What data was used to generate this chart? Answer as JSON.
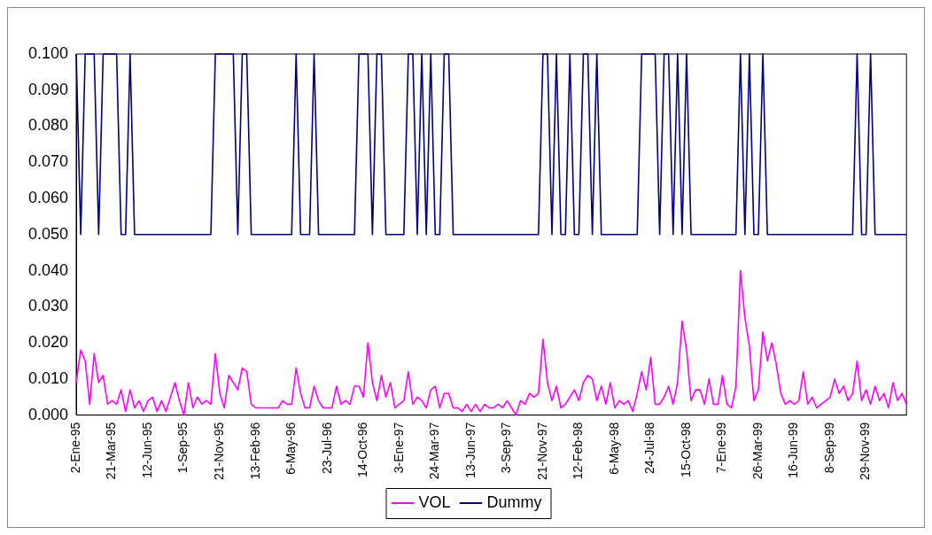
{
  "chart_data": {
    "type": "line",
    "categories": [
      "2-Ene-95",
      null,
      null,
      null,
      null,
      null,
      null,
      null,
      "21-Mar-95",
      null,
      null,
      null,
      null,
      null,
      null,
      null,
      "12-Jun-95",
      null,
      null,
      null,
      null,
      null,
      null,
      null,
      "1-Sep-95",
      null,
      null,
      null,
      null,
      null,
      null,
      null,
      "21-Nov-95",
      null,
      null,
      null,
      null,
      null,
      null,
      null,
      "13-Feb-96",
      null,
      null,
      null,
      null,
      null,
      null,
      null,
      "6-May-96",
      null,
      null,
      null,
      null,
      null,
      null,
      null,
      "23-Jul-96",
      null,
      null,
      null,
      null,
      null,
      null,
      null,
      "14-Oct-96",
      null,
      null,
      null,
      null,
      null,
      null,
      null,
      "3-Ene-97",
      null,
      null,
      null,
      null,
      null,
      null,
      null,
      "24-Mar-97",
      null,
      null,
      null,
      null,
      null,
      null,
      null,
      "13-Jun-97",
      null,
      null,
      null,
      null,
      null,
      null,
      null,
      "3-Sep-97",
      null,
      null,
      null,
      null,
      null,
      null,
      null,
      "21-Nov-97",
      null,
      null,
      null,
      null,
      null,
      null,
      null,
      "12-Feb-98",
      null,
      null,
      null,
      null,
      null,
      null,
      null,
      "6-May-98",
      null,
      null,
      null,
      null,
      null,
      null,
      null,
      "24-Jul-98",
      null,
      null,
      null,
      null,
      null,
      null,
      null,
      "15-Oct-98",
      null,
      null,
      null,
      null,
      null,
      null,
      null,
      "7-Ene-99",
      null,
      null,
      null,
      null,
      null,
      null,
      null,
      "26-Mar-99",
      null,
      null,
      null,
      null,
      null,
      null,
      null,
      "16-Jun-99",
      null,
      null,
      null,
      null,
      null,
      null,
      null,
      "8-Sep-99",
      null,
      null,
      null,
      null,
      null,
      null,
      null,
      "29-Nov-99",
      null,
      null,
      null,
      null,
      null,
      null,
      null,
      null,
      null
    ],
    "series": [
      {
        "name": "VOL",
        "color": "#ff00ff",
        "values": [
          0.009,
          0.018,
          0.015,
          0.003,
          0.017,
          0.009,
          0.011,
          0.003,
          0.004,
          0.003,
          0.007,
          0.001,
          0.007,
          0.002,
          0.004,
          0.001,
          0.004,
          0.005,
          0.001,
          0.004,
          0.001,
          0.005,
          0.009,
          0.004,
          0.0,
          0.009,
          0.002,
          0.005,
          0.003,
          0.004,
          0.003,
          0.017,
          0.006,
          0.002,
          0.011,
          0.009,
          0.007,
          0.013,
          0.012,
          0.003,
          0.002,
          0.002,
          0.002,
          0.002,
          0.002,
          0.002,
          0.004,
          0.003,
          0.003,
          0.013,
          0.006,
          0.002,
          0.002,
          0.008,
          0.004,
          0.002,
          0.002,
          0.002,
          0.008,
          0.003,
          0.004,
          0.003,
          0.008,
          0.008,
          0.005,
          0.02,
          0.009,
          0.004,
          0.011,
          0.005,
          0.009,
          0.002,
          0.003,
          0.004,
          0.012,
          0.003,
          0.005,
          0.004,
          0.002,
          0.007,
          0.008,
          0.002,
          0.006,
          0.006,
          0.002,
          0.002,
          0.001,
          0.003,
          0.001,
          0.003,
          0.001,
          0.003,
          0.002,
          0.002,
          0.003,
          0.002,
          0.004,
          0.002,
          0.0,
          0.004,
          0.003,
          0.006,
          0.005,
          0.006,
          0.021,
          0.009,
          0.004,
          0.008,
          0.002,
          0.003,
          0.005,
          0.007,
          0.004,
          0.009,
          0.011,
          0.01,
          0.004,
          0.008,
          0.003,
          0.009,
          0.002,
          0.004,
          0.003,
          0.004,
          0.001,
          0.006,
          0.012,
          0.007,
          0.016,
          0.003,
          0.003,
          0.005,
          0.008,
          0.003,
          0.009,
          0.026,
          0.018,
          0.004,
          0.007,
          0.007,
          0.003,
          0.01,
          0.003,
          0.003,
          0.011,
          0.003,
          0.002,
          0.008,
          0.04,
          0.027,
          0.019,
          0.004,
          0.007,
          0.023,
          0.015,
          0.02,
          0.014,
          0.006,
          0.003,
          0.004,
          0.003,
          0.004,
          0.012,
          0.003,
          0.005,
          0.002,
          0.003,
          0.004,
          0.005,
          0.01,
          0.006,
          0.008,
          0.004,
          0.006,
          0.015,
          0.004,
          0.007,
          0.003,
          0.008,
          0.004,
          0.006,
          0.002,
          0.009,
          0.004,
          0.006,
          0.003
        ]
      },
      {
        "name": "Dummy",
        "color": "#000080",
        "values": [
          0.1,
          0.05,
          0.1,
          0.1,
          0.1,
          0.05,
          0.1,
          0.1,
          0.1,
          0.1,
          0.05,
          0.05,
          0.1,
          0.05,
          0.05,
          0.05,
          0.05,
          0.05,
          0.05,
          0.05,
          0.05,
          0.05,
          0.05,
          0.05,
          0.05,
          0.05,
          0.05,
          0.05,
          0.05,
          0.05,
          0.05,
          0.1,
          0.1,
          0.1,
          0.1,
          0.1,
          0.05,
          0.1,
          0.1,
          0.05,
          0.05,
          0.05,
          0.05,
          0.05,
          0.05,
          0.05,
          0.05,
          0.05,
          0.05,
          0.1,
          0.05,
          0.05,
          0.05,
          0.1,
          0.05,
          0.05,
          0.05,
          0.05,
          0.05,
          0.05,
          0.05,
          0.05,
          0.05,
          0.1,
          0.1,
          0.1,
          0.05,
          0.1,
          0.1,
          0.05,
          0.05,
          0.05,
          0.05,
          0.05,
          0.1,
          0.1,
          0.05,
          0.1,
          0.05,
          0.1,
          0.05,
          0.05,
          0.1,
          0.1,
          0.05,
          0.05,
          0.05,
          0.05,
          0.05,
          0.05,
          0.05,
          0.05,
          0.05,
          0.05,
          0.05,
          0.05,
          0.05,
          0.05,
          0.05,
          0.05,
          0.05,
          0.05,
          0.05,
          0.05,
          0.1,
          0.1,
          0.05,
          0.1,
          0.05,
          0.05,
          0.1,
          0.05,
          0.05,
          0.1,
          0.1,
          0.05,
          0.1,
          0.05,
          0.05,
          0.05,
          0.05,
          0.05,
          0.05,
          0.05,
          0.05,
          0.05,
          0.1,
          0.1,
          0.1,
          0.1,
          0.05,
          0.1,
          0.1,
          0.05,
          0.1,
          0.05,
          0.1,
          0.05,
          0.05,
          0.05,
          0.05,
          0.05,
          0.05,
          0.05,
          0.05,
          0.05,
          0.05,
          0.05,
          0.1,
          0.05,
          0.1,
          0.05,
          0.05,
          0.1,
          0.05,
          0.05,
          0.05,
          0.05,
          0.05,
          0.05,
          0.05,
          0.05,
          0.05,
          0.05,
          0.05,
          0.05,
          0.05,
          0.05,
          0.05,
          0.05,
          0.05,
          0.05,
          0.05,
          0.05,
          0.1,
          0.05,
          0.05,
          0.1,
          0.05,
          0.05,
          0.05,
          0.05,
          0.05,
          0.05,
          0.05,
          0.05
        ]
      }
    ],
    "ylim": [
      0,
      0.1
    ],
    "yticks": [
      {
        "value": 0,
        "label": "0.000"
      },
      {
        "value": 0.01,
        "label": "0.010"
      },
      {
        "value": 0.02,
        "label": "0.020"
      },
      {
        "value": 0.03,
        "label": "0.030"
      },
      {
        "value": 0.04,
        "label": "0.040"
      },
      {
        "value": 0.05,
        "label": "0.050"
      },
      {
        "value": 0.06,
        "label": "0.060"
      },
      {
        "value": 0.07,
        "label": "0.070"
      },
      {
        "value": 0.08,
        "label": "0.080"
      },
      {
        "value": 0.09,
        "label": "0.090"
      },
      {
        "value": 0.1,
        "label": "0.100"
      }
    ],
    "legend": "bottom",
    "marker": "none"
  }
}
